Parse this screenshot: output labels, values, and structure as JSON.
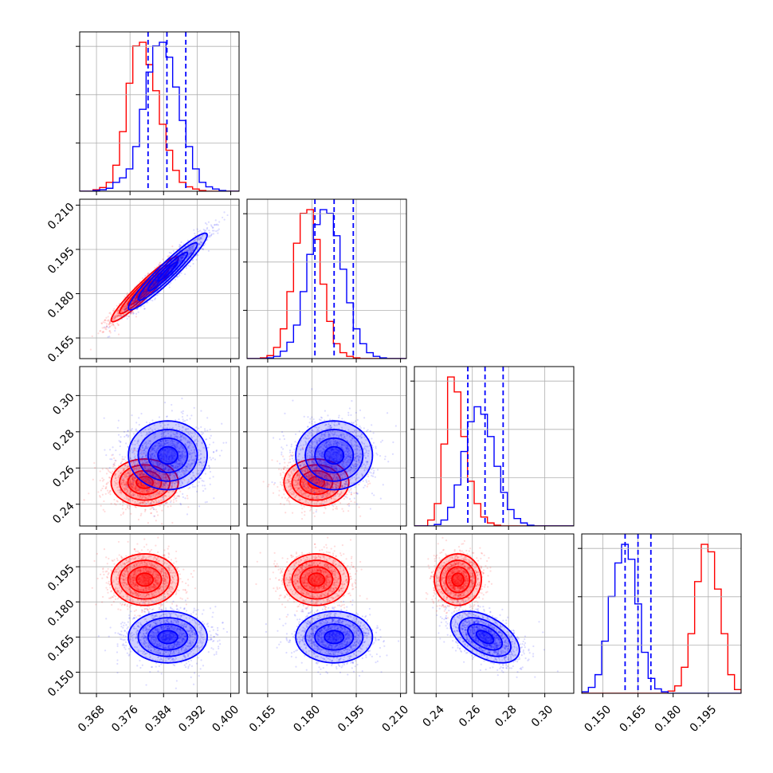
{
  "chart_data": {
    "type": "corner",
    "grid": true,
    "colors": {
      "red": "#ff0000",
      "blue": "#0000ff"
    },
    "parameters": [
      {
        "range": [
          0.364,
          0.402
        ],
        "ticks": [
          0.368,
          0.376,
          0.384,
          0.392,
          0.4
        ],
        "tick_labels": [
          "0.368",
          "0.376",
          "0.384",
          "0.392",
          "0.400"
        ]
      },
      {
        "range": [
          0.158,
          0.212
        ],
        "ticks": [
          0.165,
          0.18,
          0.195,
          0.21
        ],
        "tick_labels": [
          "0.165",
          "0.180",
          "0.195",
          "0.210"
        ]
      },
      {
        "range": [
          0.228,
          0.316
        ],
        "ticks": [
          0.24,
          0.26,
          0.28,
          0.3
        ],
        "tick_labels": [
          "0.24",
          "0.26",
          "0.28",
          "0.30"
        ]
      },
      {
        "range": [
          0.141,
          0.209
        ],
        "ticks": [
          0.15,
          0.165,
          0.18,
          0.195
        ],
        "tick_labels": [
          "0.150",
          "0.165",
          "0.180",
          "0.195"
        ]
      }
    ],
    "series": [
      {
        "color": "red",
        "means": [
          0.3795,
          0.1815,
          0.252,
          0.1895
        ],
        "sds": [
          0.004,
          0.0055,
          0.0065,
          0.0055
        ],
        "rho": {
          "0-1": 0.95
        }
      },
      {
        "color": "blue",
        "means": [
          0.385,
          0.1875,
          0.267,
          0.165
        ],
        "sds": [
          0.0047,
          0.0065,
          0.0095,
          0.0055
        ],
        "rho": {
          "0-1": 0.95,
          "2-3": -0.5
        }
      }
    ],
    "quantile_lines": {
      "color": "blue",
      "style": "dashed",
      "values": [
        [
          0.3803,
          0.3848,
          0.3893
        ],
        [
          0.181,
          0.1875,
          0.194
        ],
        [
          0.2575,
          0.267,
          0.277
        ],
        [
          0.1595,
          0.165,
          0.1705
        ]
      ]
    },
    "histograms": [
      {
        "edges_range": [
          0.364,
          0.402
        ],
        "bins": 24,
        "red": [
          0,
          0,
          2,
          5,
          12,
          35,
          80,
          145,
          195,
          200,
          170,
          135,
          90,
          55,
          28,
          12,
          6,
          3,
          1,
          0,
          0,
          0,
          0,
          0
        ],
        "blue": [
          0,
          0,
          1,
          2,
          4,
          12,
          18,
          30,
          60,
          110,
          160,
          195,
          200,
          180,
          140,
          95,
          60,
          30,
          12,
          6,
          3,
          1,
          0,
          0
        ]
      },
      {
        "edges_range": [
          0.158,
          0.212
        ],
        "bins": 24,
        "red": [
          0,
          0,
          1,
          4,
          15,
          40,
          90,
          155,
          195,
          200,
          160,
          100,
          50,
          20,
          8,
          3,
          1,
          0,
          0,
          0,
          0,
          0,
          0,
          0
        ],
        "blue": [
          0,
          0,
          0,
          1,
          3,
          10,
          22,
          45,
          90,
          140,
          180,
          200,
          195,
          165,
          120,
          75,
          40,
          20,
          8,
          3,
          1,
          0,
          0,
          0
        ],
        "axis_ticks": [
          0.165,
          0.18,
          0.195,
          0.21
        ]
      },
      {
        "edges_range": [
          0.228,
          0.316
        ],
        "bins": 24,
        "red": [
          0,
          0,
          8,
          30,
          110,
          200,
          180,
          120,
          60,
          30,
          12,
          4,
          1,
          0,
          0,
          0,
          0,
          0,
          0,
          0,
          0,
          0,
          0,
          0
        ],
        "blue": [
          0,
          0,
          0,
          2,
          8,
          25,
          55,
          100,
          140,
          160,
          150,
          120,
          80,
          45,
          22,
          10,
          4,
          1,
          0,
          0,
          0,
          0,
          0,
          0
        ],
        "axis_ticks": [
          0.24,
          0.26,
          0.28,
          0.3
        ]
      },
      {
        "edges_range": [
          0.141,
          0.209
        ],
        "bins": 24,
        "red": [
          0,
          0,
          0,
          0,
          0,
          0,
          0,
          0,
          0,
          0,
          0,
          0,
          0,
          3,
          10,
          35,
          80,
          150,
          200,
          190,
          140,
          80,
          25,
          5
        ],
        "blue": [
          2,
          8,
          25,
          70,
          130,
          175,
          200,
          180,
          120,
          55,
          20,
          6,
          2,
          0,
          0,
          0,
          0,
          0,
          0,
          0,
          0,
          0,
          0,
          0
        ]
      }
    ]
  }
}
